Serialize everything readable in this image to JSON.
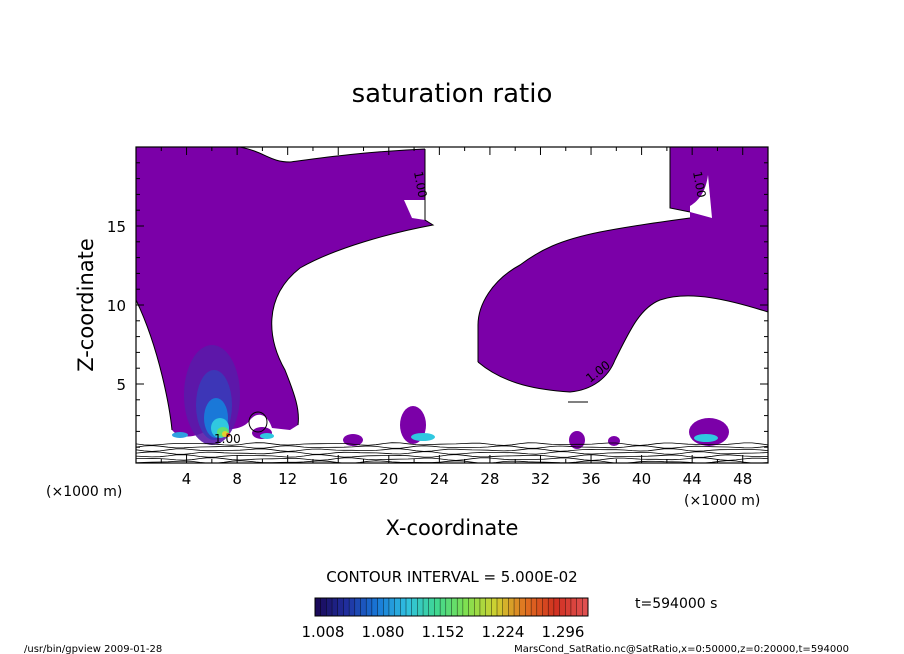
{
  "chart_data": {
    "type": "contour",
    "title": "saturation ratio",
    "xlabel": "X-coordinate",
    "ylabel": "Z-coordinate",
    "x_unit": "(×1000 m)",
    "y_unit": "(×1000 m)",
    "xlim": [
      0,
      50
    ],
    "ylim": [
      0,
      20
    ],
    "x_ticks": [
      "4",
      "8",
      "12",
      "16",
      "20",
      "24",
      "28",
      "32",
      "36",
      "40",
      "44",
      "48"
    ],
    "y_ticks": [
      "5",
      "10",
      "15"
    ],
    "x_tick_values": [
      4,
      8,
      12,
      16,
      20,
      24,
      28,
      32,
      36,
      40,
      44,
      48
    ],
    "y_tick_values": [
      5,
      10,
      15
    ],
    "contour_interval_text": "CONTOUR INTERVAL = 5.000E-02",
    "contour_label": "1.00",
    "colorbar": {
      "ticks": [
        "1.008",
        "1.080",
        "1.152",
        "1.224",
        "1.296"
      ],
      "min": 1.008,
      "max": 1.296,
      "colors": [
        "#1a0a5a",
        "#2030a0",
        "#1878d8",
        "#30c0e0",
        "#40d890",
        "#80e050",
        "#d0d030",
        "#e07020",
        "#d03020",
        "#e05050"
      ]
    },
    "fill_color": "#7b00a8",
    "time_text": "t=594000 s"
  },
  "footer": {
    "left": "/usr/bin/gpview  2009-01-28",
    "right": "MarsCond_SatRatio.nc@SatRatio,x=0:50000,z=0:20000,t=594000"
  }
}
